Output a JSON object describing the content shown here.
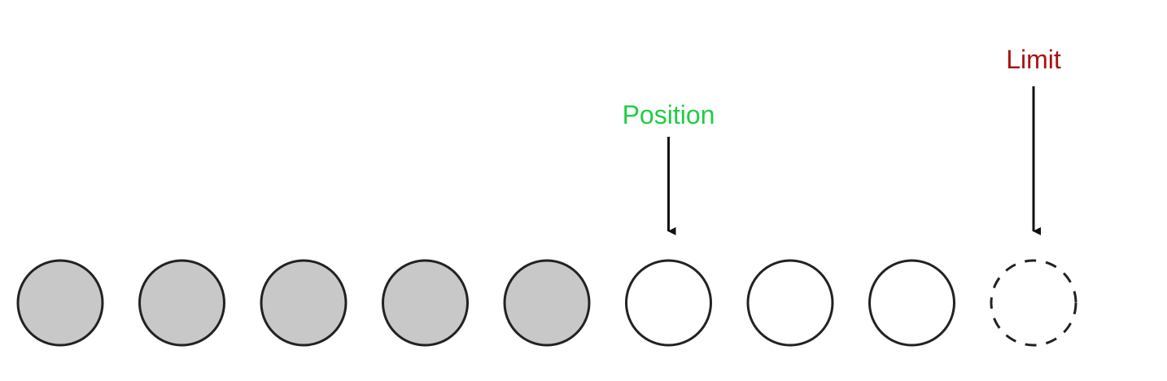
{
  "cells": [
    {
      "state": "filled"
    },
    {
      "state": "filled"
    },
    {
      "state": "filled"
    },
    {
      "state": "filled"
    },
    {
      "state": "filled"
    },
    {
      "state": "empty"
    },
    {
      "state": "empty"
    },
    {
      "state": "empty"
    },
    {
      "state": "beyond-limit"
    }
  ],
  "markers": {
    "position": {
      "label": "Position",
      "cell_index": 5,
      "color": "#22cc44"
    },
    "limit": {
      "label": "Limit",
      "cell_index": 8,
      "color": "#aa1111"
    }
  },
  "colors": {
    "filled": "#c8c8c8",
    "stroke": "#222222",
    "empty": "#ffffff",
    "arrow": "#111111"
  }
}
